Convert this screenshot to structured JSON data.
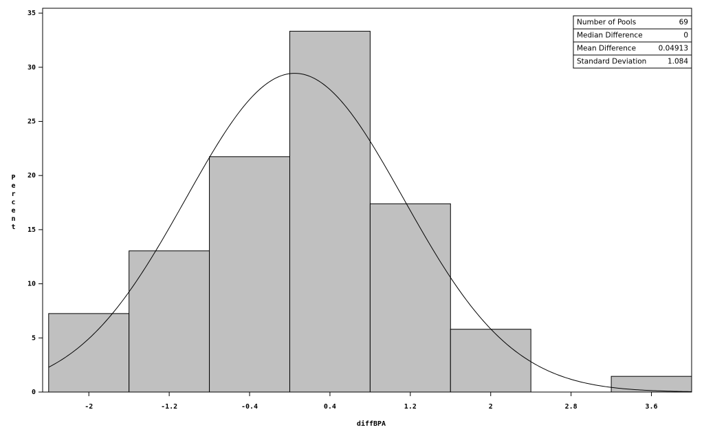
{
  "chart_data": {
    "type": "histogram",
    "x_label": "diffBPA",
    "y_label": "Percent",
    "bins": [
      -2.4,
      -1.6,
      -0.8,
      0,
      0.8,
      1.6,
      2.4,
      3.2,
      4.0
    ],
    "values": [
      7.25,
      13.04,
      21.74,
      33.33,
      17.39,
      5.8,
      0,
      1.45
    ],
    "color": "#c0c0c0",
    "xlim": [
      -2.46,
      4.0
    ],
    "xticks": [
      -2,
      -1.2,
      -0.4,
      0.4,
      1.2,
      2,
      2.8,
      3.6
    ],
    "ylim": [
      0,
      35.45
    ],
    "yticks": [
      0,
      5,
      10,
      15,
      20,
      25,
      30,
      35
    ],
    "inset": {
      "rows": [
        [
          "Number of Pools",
          69
        ],
        [
          "Median Difference",
          0
        ],
        [
          "Mean Difference",
          0.04913
        ],
        [
          "Standard Deviation",
          1.084
        ]
      ]
    }
  }
}
